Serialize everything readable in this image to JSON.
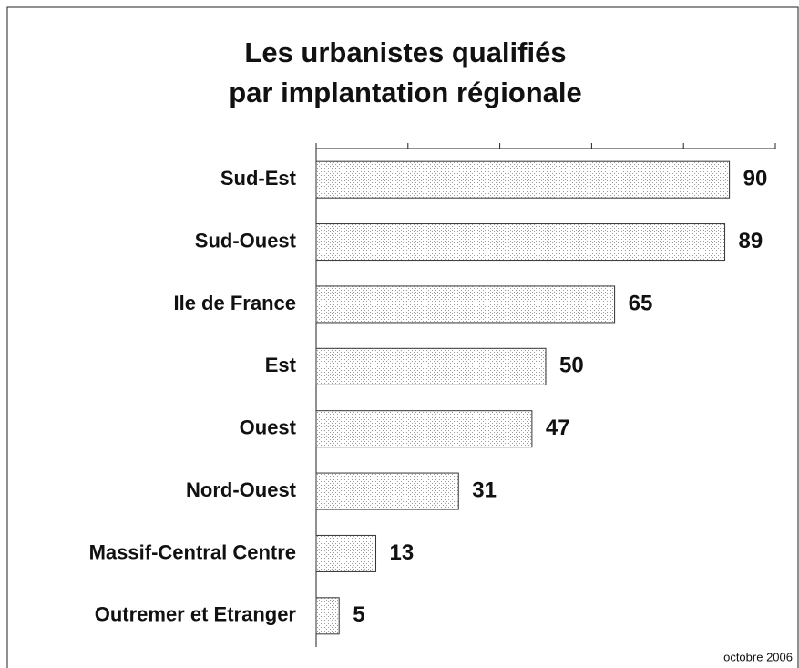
{
  "chart_data": {
    "type": "bar",
    "orientation": "horizontal",
    "title": [
      "Les urbanistes qualifiés",
      "par implantation régionale"
    ],
    "categories": [
      "Sud-Est",
      "Sud-Ouest",
      "Ile de France",
      "Est",
      "Ouest",
      "Nord-Ouest",
      "Massif-Central Centre",
      "Outremer et Etranger"
    ],
    "values": [
      90,
      89,
      65,
      50,
      47,
      31,
      13,
      5
    ],
    "color": "#9a9a9a",
    "xlim": [
      0,
      100
    ],
    "xticks": [
      0,
      20,
      40,
      60,
      80,
      100
    ],
    "footer": "octobre 2006"
  }
}
